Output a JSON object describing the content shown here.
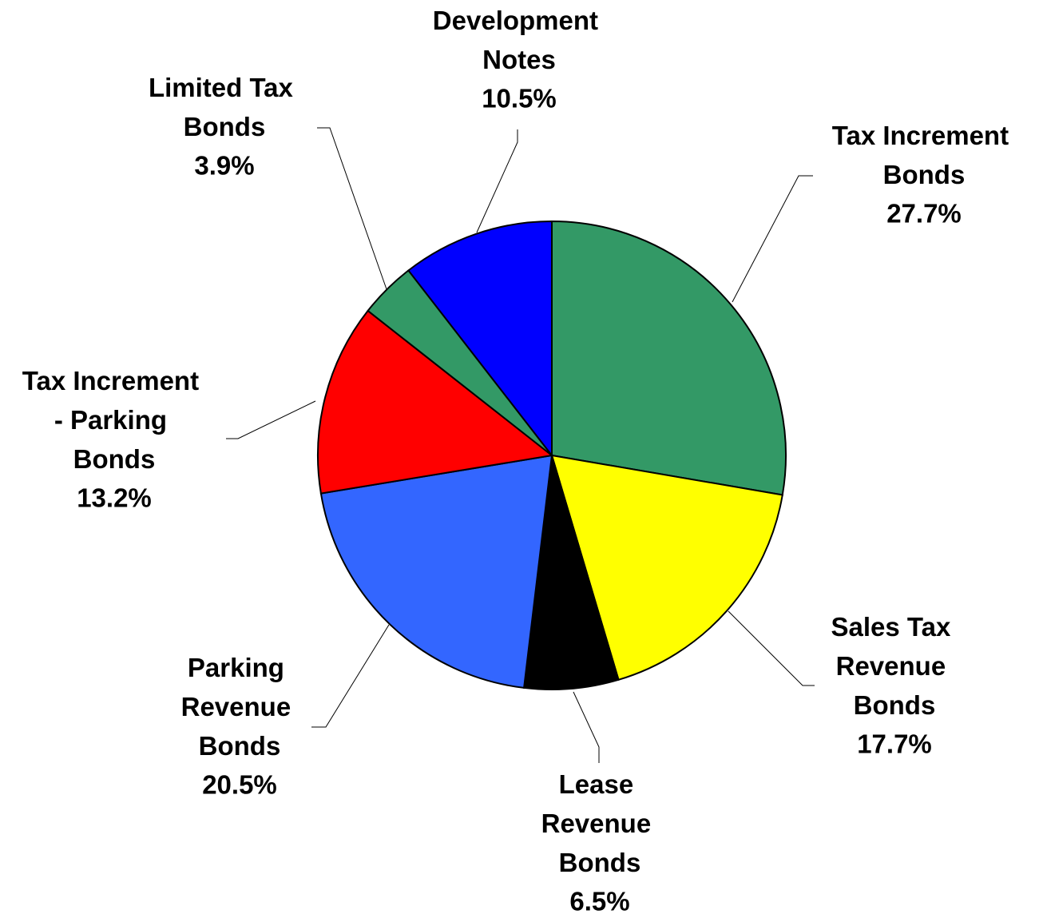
{
  "chart_data": {
    "type": "pie",
    "categories": [
      "Tax Increment Bonds",
      "Sales Tax Revenue Bonds",
      "Lease Revenue Bonds",
      "Parking Revenue Bonds",
      "Tax Increment - Parking Bonds",
      "Limited Tax Bonds",
      "Development Notes"
    ],
    "values": [
      27.7,
      17.7,
      6.5,
      20.5,
      13.2,
      3.9,
      10.5
    ],
    "value_labels": [
      "27.7%",
      "17.7%",
      "6.5%",
      "20.5%",
      "13.2%",
      "3.9%",
      "10.5%"
    ],
    "colors": [
      "#339966",
      "#ffff00",
      "#000000",
      "#3366ff",
      "#ff0000",
      "#339966",
      "#0000ff"
    ]
  }
}
